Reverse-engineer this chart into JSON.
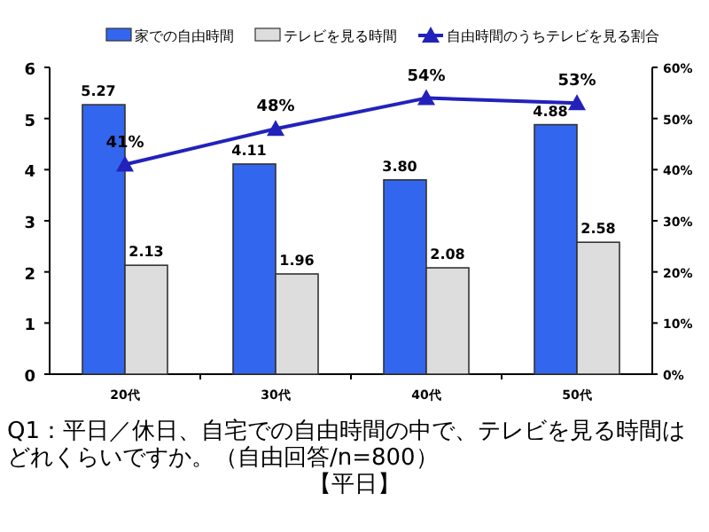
{
  "chart_data": {
    "type": "bar",
    "categories": [
      "20代",
      "30代",
      "40代",
      "50代"
    ],
    "series": [
      {
        "name": "家での自由時間",
        "color": "#3366ee",
        "values": [
          5.27,
          4.11,
          3.8,
          4.88
        ],
        "value_labels": [
          "5.27",
          "4.11",
          "3.80",
          "4.88"
        ]
      },
      {
        "name": "テレビを見る時間",
        "color": "#dddddd",
        "values": [
          2.13,
          1.96,
          2.08,
          2.58
        ],
        "value_labels": [
          "2.13",
          "1.96",
          "2.08",
          "2.58"
        ]
      },
      {
        "name": "自由時間のうちテレビを見る割合",
        "type": "line",
        "axis": "y2",
        "color": "#2222bb",
        "marker": "triangle",
        "values": [
          41,
          48,
          54,
          53
        ],
        "value_labels": [
          "41%",
          "48%",
          "54%",
          "53%"
        ]
      }
    ],
    "ylim": [
      0,
      6
    ],
    "yticks": [
      0,
      1,
      2,
      3,
      4,
      5,
      6
    ],
    "y2lim": [
      0,
      60
    ],
    "y2ticks": [
      {
        "value": 0,
        "label": "0%"
      },
      {
        "value": 10,
        "label": "10%"
      },
      {
        "value": 20,
        "label": "20%"
      },
      {
        "value": 30,
        "label": "30%"
      },
      {
        "value": 40,
        "label": "40%"
      },
      {
        "value": 50,
        "label": "50%"
      },
      {
        "value": 60,
        "label": "60%"
      }
    ],
    "legend": "top",
    "grid": false,
    "annotations": [
      "Q1：平日／休日、自宅での自由時間の中で、テレビを見る時間はどれくらいですか。（自由回答/n=800）",
      "【平日】"
    ]
  }
}
